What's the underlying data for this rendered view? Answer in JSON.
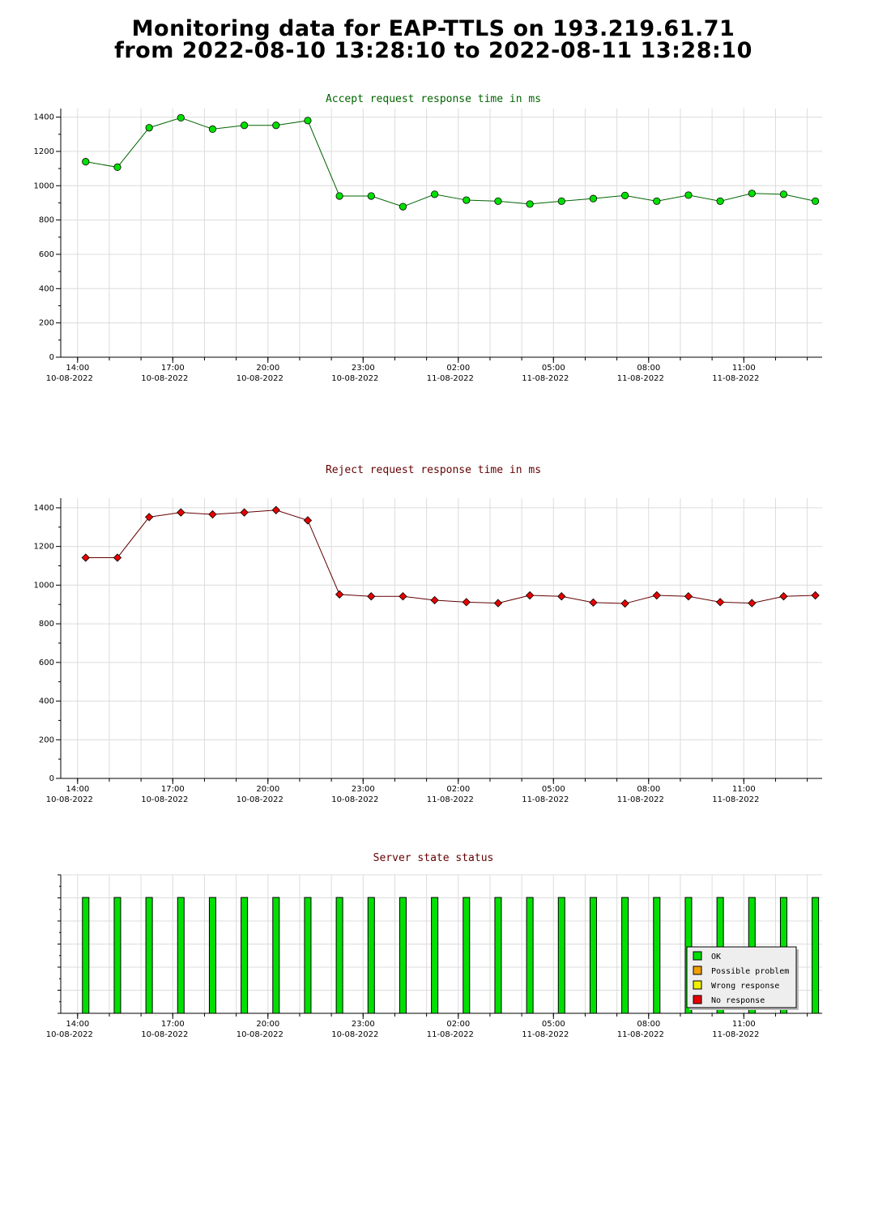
{
  "title": {
    "line1": "Monitoring data for EAP-TTLS on 193.219.61.71",
    "line2": "from 2022-08-10 13:28:10 to 2022-08-11 13:28:10"
  },
  "colors": {
    "accept_line": "#006400",
    "accept_marker": "#00e000",
    "reject_line": "#640000",
    "reject_marker": "#e80000",
    "status_ok": "#00e000",
    "status_possible_problem": "#f0a000",
    "status_wrong_response": "#f0f000",
    "status_no_response": "#e80000",
    "grid": "#dcdcdc"
  },
  "x_ticks": [
    {
      "time": "14:00",
      "date": "10-08-2022"
    },
    {
      "time": "17:00",
      "date": "10-08-2022"
    },
    {
      "time": "20:00",
      "date": "10-08-2022"
    },
    {
      "time": "23:00",
      "date": "10-08-2022"
    },
    {
      "time": "02:00",
      "date": "11-08-2022"
    },
    {
      "time": "05:00",
      "date": "11-08-2022"
    },
    {
      "time": "08:00",
      "date": "11-08-2022"
    },
    {
      "time": "11:00",
      "date": "11-08-2022"
    }
  ],
  "chart_data": [
    {
      "id": "accept",
      "type": "line",
      "title": "Accept request response time in ms",
      "ylim": [
        0,
        1450
      ],
      "yticks": [
        0,
        200,
        400,
        600,
        800,
        1000,
        1200,
        1400
      ],
      "grid": true,
      "x": [
        "2022-08-10 14:00",
        "2022-08-10 15:00",
        "2022-08-10 16:00",
        "2022-08-10 17:00",
        "2022-08-10 18:00",
        "2022-08-10 19:00",
        "2022-08-10 20:00",
        "2022-08-10 21:00",
        "2022-08-10 22:00",
        "2022-08-10 23:00",
        "2022-08-11 00:00",
        "2022-08-11 01:00",
        "2022-08-11 02:00",
        "2022-08-11 03:00",
        "2022-08-11 04:00",
        "2022-08-11 05:00",
        "2022-08-11 06:00",
        "2022-08-11 07:00",
        "2022-08-11 08:00",
        "2022-08-11 09:00",
        "2022-08-11 10:00",
        "2022-08-11 11:00",
        "2022-08-11 12:00",
        "2022-08-11 13:00"
      ],
      "values": [
        1140,
        1108,
        1338,
        1396,
        1330,
        1352,
        1352,
        1380,
        940,
        940,
        878,
        950,
        916,
        910,
        893,
        910,
        925,
        943,
        910,
        945,
        910,
        955,
        950,
        910
      ]
    },
    {
      "id": "reject",
      "type": "line",
      "title": "Reject request response time in ms",
      "ylim": [
        0,
        1450
      ],
      "yticks": [
        0,
        200,
        400,
        600,
        800,
        1000,
        1200,
        1400
      ],
      "grid": true,
      "x": [
        "2022-08-10 14:00",
        "2022-08-10 15:00",
        "2022-08-10 16:00",
        "2022-08-10 17:00",
        "2022-08-10 18:00",
        "2022-08-10 19:00",
        "2022-08-10 20:00",
        "2022-08-10 21:00",
        "2022-08-10 22:00",
        "2022-08-10 23:00",
        "2022-08-11 00:00",
        "2022-08-11 01:00",
        "2022-08-11 02:00",
        "2022-08-11 03:00",
        "2022-08-11 04:00",
        "2022-08-11 05:00",
        "2022-08-11 06:00",
        "2022-08-11 07:00",
        "2022-08-11 08:00",
        "2022-08-11 09:00",
        "2022-08-11 10:00",
        "2022-08-11 11:00",
        "2022-08-11 12:00",
        "2022-08-11 13:00"
      ],
      "values": [
        1142,
        1142,
        1352,
        1376,
        1366,
        1376,
        1388,
        1335,
        952,
        942,
        942,
        922,
        912,
        907,
        947,
        942,
        910,
        905,
        947,
        942,
        912,
        907,
        942,
        947
      ]
    },
    {
      "id": "status",
      "type": "bar",
      "title": "Server state status",
      "x": [
        "2022-08-10 14:00",
        "2022-08-10 15:00",
        "2022-08-10 16:00",
        "2022-08-10 17:00",
        "2022-08-10 18:00",
        "2022-08-10 19:00",
        "2022-08-10 20:00",
        "2022-08-10 21:00",
        "2022-08-10 22:00",
        "2022-08-10 23:00",
        "2022-08-11 00:00",
        "2022-08-11 01:00",
        "2022-08-11 02:00",
        "2022-08-11 03:00",
        "2022-08-11 04:00",
        "2022-08-11 05:00",
        "2022-08-11 06:00",
        "2022-08-11 07:00",
        "2022-08-11 08:00",
        "2022-08-11 09:00",
        "2022-08-11 10:00",
        "2022-08-11 11:00",
        "2022-08-11 12:00",
        "2022-08-11 13:00"
      ],
      "states": [
        "OK",
        "OK",
        "OK",
        "OK",
        "OK",
        "OK",
        "OK",
        "OK",
        "OK",
        "OK",
        "OK",
        "OK",
        "OK",
        "OK",
        "OK",
        "OK",
        "OK",
        "OK",
        "OK",
        "OK",
        "OK",
        "OK",
        "OK",
        "OK"
      ],
      "legend": [
        "OK",
        "Possible problem",
        "Wrong response",
        "No response"
      ],
      "legend_position": "bottom-right",
      "grid": true
    }
  ]
}
